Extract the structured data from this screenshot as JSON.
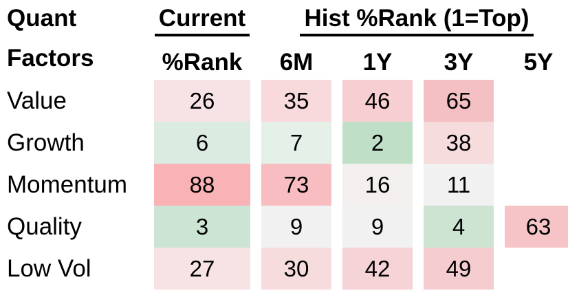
{
  "table": {
    "title_line1": "Quant",
    "title_line2": "Factors",
    "group_headers": {
      "current": "Current",
      "hist": "Hist %Rank (1=Top)"
    },
    "column_headers": [
      "%Rank",
      "6M",
      "1Y",
      "3Y",
      "5Y"
    ],
    "rows": [
      {
        "label": "Value",
        "cells": [
          {
            "value": "26",
            "bg": "#f7e3e5"
          },
          {
            "value": "35",
            "bg": "#f8dadc"
          },
          {
            "value": "46",
            "bg": "#f7cfd2"
          },
          {
            "value": "65",
            "bg": "#f5c0c4"
          },
          {
            "value": "",
            "bg": ""
          }
        ]
      },
      {
        "label": "Growth",
        "cells": [
          {
            "value": "6",
            "bg": "#dcebe1"
          },
          {
            "value": "7",
            "bg": "#e5f0e8"
          },
          {
            "value": "2",
            "bg": "#bfdfc6"
          },
          {
            "value": "38",
            "bg": "#f7dcde"
          },
          {
            "value": "",
            "bg": ""
          }
        ]
      },
      {
        "label": "Momentum",
        "cells": [
          {
            "value": "88",
            "bg": "#f9b2b6"
          },
          {
            "value": "73",
            "bg": "#f7bdc0"
          },
          {
            "value": "16",
            "bg": "#f4efef"
          },
          {
            "value": "11",
            "bg": "#f2f1f1"
          },
          {
            "value": "",
            "bg": ""
          }
        ]
      },
      {
        "label": "Quality",
        "cells": [
          {
            "value": "3",
            "bg": "#cce4d4"
          },
          {
            "value": "9",
            "bg": "#f2f1f1"
          },
          {
            "value": "9",
            "bg": "#f2f1f1"
          },
          {
            "value": "4",
            "bg": "#cde4d3"
          },
          {
            "value": "63",
            "bg": "#f6c4c7"
          }
        ]
      },
      {
        "label": "Low Vol",
        "cells": [
          {
            "value": "27",
            "bg": "#f7e2e4"
          },
          {
            "value": "30",
            "bg": "#f7dcde"
          },
          {
            "value": "42",
            "bg": "#f6d3d6"
          },
          {
            "value": "49",
            "bg": "#f5cccf"
          },
          {
            "value": "",
            "bg": ""
          }
        ]
      }
    ],
    "heatmap_colors": {
      "strong_red": "#f9b2b6",
      "light_red": "#f7e3e5",
      "strong_green": "#bfdfc6",
      "light_green": "#e5f0e8",
      "neutral": "#f2f1f1"
    }
  },
  "chart_data": {
    "type": "heatmap",
    "title": "Quant Factors — Current and Historical Percentile Ranks (1=Top)",
    "row_labels": [
      "Value",
      "Growth",
      "Momentum",
      "Quality",
      "Low Vol"
    ],
    "column_labels": [
      "Current %Rank",
      "6M",
      "1Y",
      "3Y",
      "5Y"
    ],
    "values": [
      [
        26,
        35,
        46,
        65,
        null
      ],
      [
        6,
        7,
        2,
        38,
        null
      ],
      [
        88,
        73,
        16,
        11,
        null
      ],
      [
        3,
        9,
        9,
        4,
        63
      ],
      [
        27,
        30,
        42,
        49,
        null
      ]
    ],
    "color_rule": "low rank = green, high rank = red, mid = neutral gray"
  }
}
